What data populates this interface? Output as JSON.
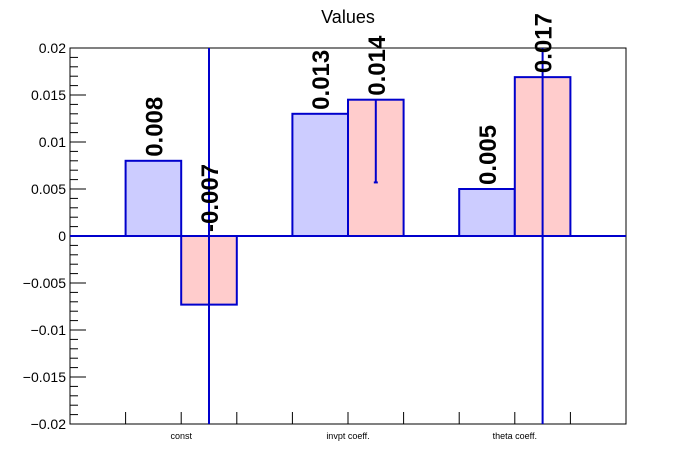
{
  "chart_data": {
    "type": "bar",
    "title": "Values",
    "xlabel": "",
    "ylabel": "",
    "categories": [
      "const",
      "invpt coeff.",
      "theta coeff."
    ],
    "ylim": [
      -0.02,
      0.02
    ],
    "yticks": [
      -0.02,
      -0.015,
      -0.01,
      -0.005,
      0,
      0.005,
      0.01,
      0.015,
      0.02
    ],
    "ytick_labels": [
      "−0.02",
      "−0.015",
      "−0.01",
      "−0.005",
      "0",
      "0.005",
      "0.01",
      "0.015",
      "0.02"
    ],
    "series": [
      {
        "values": [
          0.008,
          0.013,
          0.005
        ],
        "labels": [
          "0.008",
          "0.013",
          "0.005"
        ],
        "color": "#ccccff",
        "error": [
          null,
          null,
          null
        ]
      },
      {
        "values": [
          -0.0073,
          0.0145,
          0.0169
        ],
        "labels": [
          "-0.007",
          "0.014",
          "0.017"
        ],
        "color": "#ffcccc",
        "error": [
          [
            -0.02,
            0.02
          ],
          [
            0.0057,
            0.0145
          ],
          [
            -0.02,
            0.02
          ]
        ]
      }
    ],
    "edge_color": "#0000cc",
    "grid": false,
    "legend": "none"
  }
}
